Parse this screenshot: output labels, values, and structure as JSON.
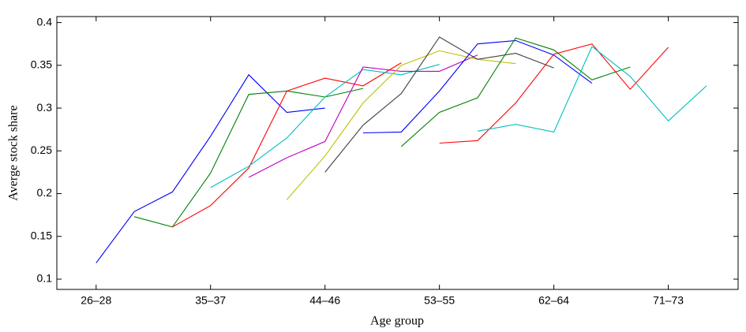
{
  "chart_data": {
    "type": "line",
    "x_label": "Age group",
    "y_label": "Averge stock share",
    "categories": [
      "26–28",
      null,
      null,
      "35–37",
      null,
      null,
      "44–46",
      null,
      null,
      "53–55",
      null,
      null,
      "62–64",
      null,
      null,
      "71–73",
      null
    ],
    "ylim": [
      0.088,
      0.407
    ],
    "yticks": [
      0.1,
      0.15,
      0.2,
      0.25,
      0.3,
      0.35,
      0.4
    ],
    "series": [
      {
        "color": "#0000ff",
        "values": [
          0.119,
          0.179,
          0.202,
          0.267,
          0.339,
          0.295,
          0.3,
          null,
          null,
          null,
          null,
          null,
          null,
          null,
          null,
          null,
          null
        ]
      },
      {
        "color": "#008000",
        "values": [
          null,
          0.173,
          0.161,
          0.224,
          0.316,
          0.32,
          0.313,
          0.323,
          null,
          null,
          null,
          null,
          null,
          null,
          null,
          null,
          null
        ]
      },
      {
        "color": "#ff0000",
        "values": [
          null,
          null,
          0.161,
          0.186,
          0.23,
          0.32,
          0.335,
          0.326,
          0.353,
          null,
          null,
          null,
          null,
          null,
          null,
          null,
          null
        ]
      },
      {
        "color": "#00bfbf",
        "values": [
          null,
          null,
          null,
          0.207,
          0.232,
          0.265,
          0.313,
          0.345,
          0.339,
          0.351,
          null,
          null,
          null,
          null,
          null,
          null,
          null
        ]
      },
      {
        "color": "#bf00bf",
        "values": [
          null,
          null,
          null,
          null,
          0.219,
          0.242,
          0.261,
          0.348,
          0.343,
          0.343,
          0.362,
          null,
          null,
          null,
          null,
          null,
          null
        ]
      },
      {
        "color": "#bfbf00",
        "values": [
          null,
          null,
          null,
          null,
          null,
          0.193,
          0.244,
          0.306,
          0.35,
          0.367,
          0.357,
          0.352,
          null,
          null,
          null,
          null,
          null
        ]
      },
      {
        "color": "#404040",
        "values": [
          null,
          null,
          null,
          null,
          null,
          null,
          0.225,
          0.28,
          0.317,
          0.383,
          0.357,
          0.364,
          0.347,
          null,
          null,
          null,
          null
        ]
      },
      {
        "color": "#0000ff",
        "values": [
          null,
          null,
          null,
          null,
          null,
          null,
          null,
          0.271,
          0.272,
          0.32,
          0.375,
          0.379,
          0.362,
          0.329,
          null,
          null,
          null
        ]
      },
      {
        "color": "#008000",
        "values": [
          null,
          null,
          null,
          null,
          null,
          null,
          null,
          null,
          0.255,
          0.295,
          0.312,
          0.382,
          0.368,
          0.333,
          0.348,
          null,
          null
        ]
      },
      {
        "color": "#ff0000",
        "values": [
          null,
          null,
          null,
          null,
          null,
          null,
          null,
          null,
          null,
          0.259,
          0.262,
          0.306,
          0.363,
          0.375,
          0.322,
          0.371,
          null
        ]
      },
      {
        "color": "#00bfbf",
        "values": [
          null,
          null,
          null,
          null,
          null,
          null,
          null,
          null,
          null,
          null,
          0.273,
          0.281,
          0.272,
          0.372,
          0.337,
          0.285,
          0.326
        ]
      }
    ]
  }
}
